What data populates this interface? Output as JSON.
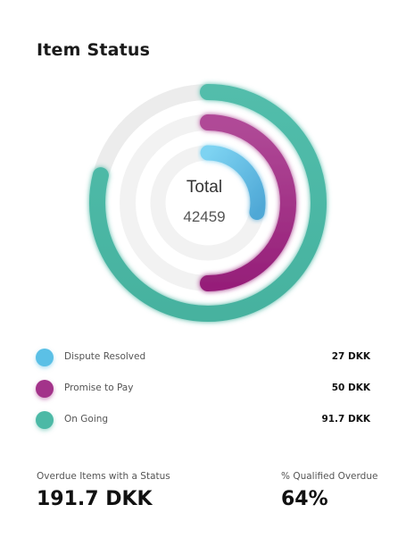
{
  "card": {
    "title": "Item Status"
  },
  "chart_data": {
    "type": "radial-bar",
    "center_label": "Total",
    "center_value": "42459",
    "series": [
      {
        "name": "Dispute Resolved",
        "value_label": "27 DKK",
        "value": 27,
        "fraction": 0.28,
        "color": "#5bc0e6"
      },
      {
        "name": "Promise to Pay",
        "value_label": "50 DKK",
        "value": 50,
        "fraction": 0.5,
        "color": "#a3338a"
      },
      {
        "name": "On Going",
        "value_label": "91.7 DKK",
        "value": 91.7,
        "fraction": 0.79,
        "color": "#4cb9a6"
      }
    ],
    "track_color": "#efefef"
  },
  "legend": [
    {
      "label": "Dispute Resolved",
      "value": "27 DKK",
      "color": "#5bc0e6"
    },
    {
      "label": "Promise to Pay",
      "value": "50 DKK",
      "color": "#a3338a"
    },
    {
      "label": "On Going",
      "value": "91.7 DKK",
      "color": "#4cb9a6"
    }
  ],
  "stats": {
    "overdue": {
      "label": "Overdue Items with a Status",
      "value": "191.7 DKK"
    },
    "qualified": {
      "label": "% Qualified Overdue",
      "value": "64%"
    }
  }
}
